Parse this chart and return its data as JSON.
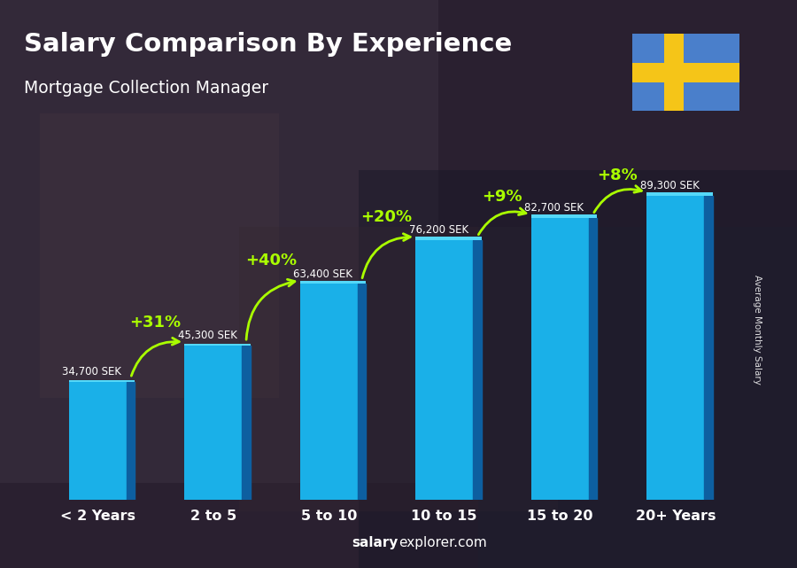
{
  "title": "Salary Comparison By Experience",
  "subtitle": "Mortgage Collection Manager",
  "categories": [
    "< 2 Years",
    "2 to 5",
    "5 to 10",
    "10 to 15",
    "15 to 20",
    "20+ Years"
  ],
  "values": [
    34700,
    45300,
    63400,
    76200,
    82700,
    89300
  ],
  "value_labels": [
    "34,700 SEK",
    "45,300 SEK",
    "63,400 SEK",
    "76,200 SEK",
    "82,700 SEK",
    "89,300 SEK"
  ],
  "pct_labels": [
    null,
    "+31%",
    "+40%",
    "+20%",
    "+9%",
    "+8%"
  ],
  "bar_color_main": "#1ab0e8",
  "bar_color_side": "#0d5fa0",
  "bar_color_top": "#55d8f8",
  "text_color": "#ffffff",
  "pct_color": "#aaff00",
  "ylabel": "Average Monthly Salary",
  "watermark_bold": "salary",
  "watermark_rest": "explorer.com",
  "ylim": [
    0,
    100000
  ],
  "flag_blue": "#4a7fcb",
  "flag_yellow": "#f5c518",
  "bg_dark": "#1a1a2a",
  "overlay_alpha": 0.45
}
